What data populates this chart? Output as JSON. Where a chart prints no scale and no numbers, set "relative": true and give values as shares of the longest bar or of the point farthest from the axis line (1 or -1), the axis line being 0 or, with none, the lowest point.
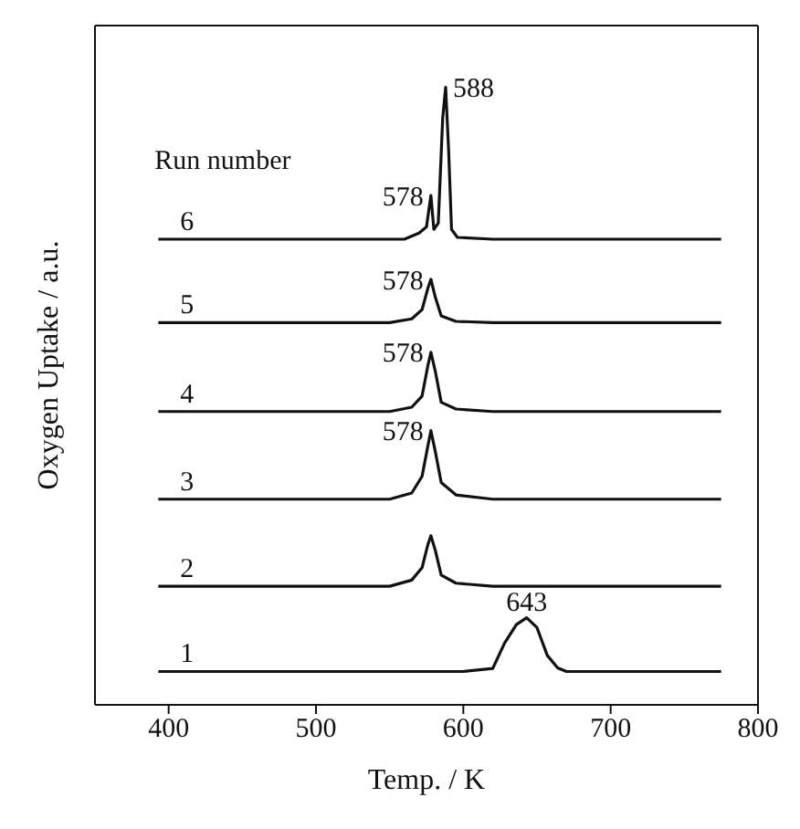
{
  "chart_data": {
    "type": "line",
    "relative": true,
    "xlabel": "Temp. / K",
    "ylabel": "Oxygen Uptake / a.u.",
    "legend_title": "Run number",
    "xlim": [
      350,
      800
    ],
    "xticks": [
      400,
      500,
      600,
      700,
      800
    ],
    "marker": "none",
    "line_style": "solid",
    "series": [
      {
        "name": "1",
        "color": "#111111",
        "x": [
          393,
          500,
          600,
          620,
          628,
          636,
          643,
          650,
          657,
          664,
          670,
          775
        ],
        "values": [
          0.054,
          0.054,
          0.054,
          0.059,
          0.1,
          0.13,
          0.141,
          0.125,
          0.08,
          0.06,
          0.054,
          0.054
        ]
      },
      {
        "name": "2",
        "color": "#111111",
        "x": [
          393,
          550,
          565,
          572,
          576,
          578,
          581,
          585,
          595,
          620,
          775
        ],
        "values": [
          0.192,
          0.192,
          0.202,
          0.222,
          0.26,
          0.274,
          0.25,
          0.21,
          0.197,
          0.192,
          0.192
        ]
      },
      {
        "name": "3",
        "color": "#111111",
        "x": [
          393,
          550,
          565,
          572,
          576,
          578,
          581,
          585,
          595,
          620,
          775
        ],
        "values": [
          0.333,
          0.333,
          0.343,
          0.37,
          0.42,
          0.444,
          0.41,
          0.36,
          0.34,
          0.333,
          0.333
        ]
      },
      {
        "name": "4",
        "color": "#111111",
        "x": [
          393,
          550,
          565,
          572,
          576,
          578,
          581,
          585,
          595,
          620,
          775
        ],
        "values": [
          0.475,
          0.475,
          0.482,
          0.5,
          0.55,
          0.571,
          0.54,
          0.49,
          0.479,
          0.475,
          0.475
        ]
      },
      {
        "name": "5",
        "color": "#111111",
        "x": [
          393,
          550,
          565,
          572,
          576,
          578,
          581,
          585,
          595,
          620,
          775
        ],
        "values": [
          0.619,
          0.619,
          0.625,
          0.64,
          0.675,
          0.689,
          0.66,
          0.63,
          0.621,
          0.619,
          0.619
        ]
      },
      {
        "name": "6",
        "color": "#111111",
        "x": [
          393,
          560,
          570,
          575,
          578,
          580,
          583,
          586,
          588,
          590,
          592,
          596,
          620,
          775
        ],
        "values": [
          0.754,
          0.754,
          0.764,
          0.774,
          0.825,
          0.77,
          0.78,
          0.95,
          1.0,
          0.9,
          0.77,
          0.757,
          0.754,
          0.754
        ]
      }
    ],
    "annotations": [
      {
        "text": "643",
        "x": 643,
        "y": 0.141
      },
      {
        "text": "578",
        "x": 578,
        "y": 0.444
      },
      {
        "text": "578",
        "x": 578,
        "y": 0.571
      },
      {
        "text": "578",
        "x": 578,
        "y": 0.689
      },
      {
        "text": "578",
        "x": 578,
        "y": 0.825
      },
      {
        "text": "588",
        "x": 588,
        "y": 1.0
      }
    ]
  }
}
